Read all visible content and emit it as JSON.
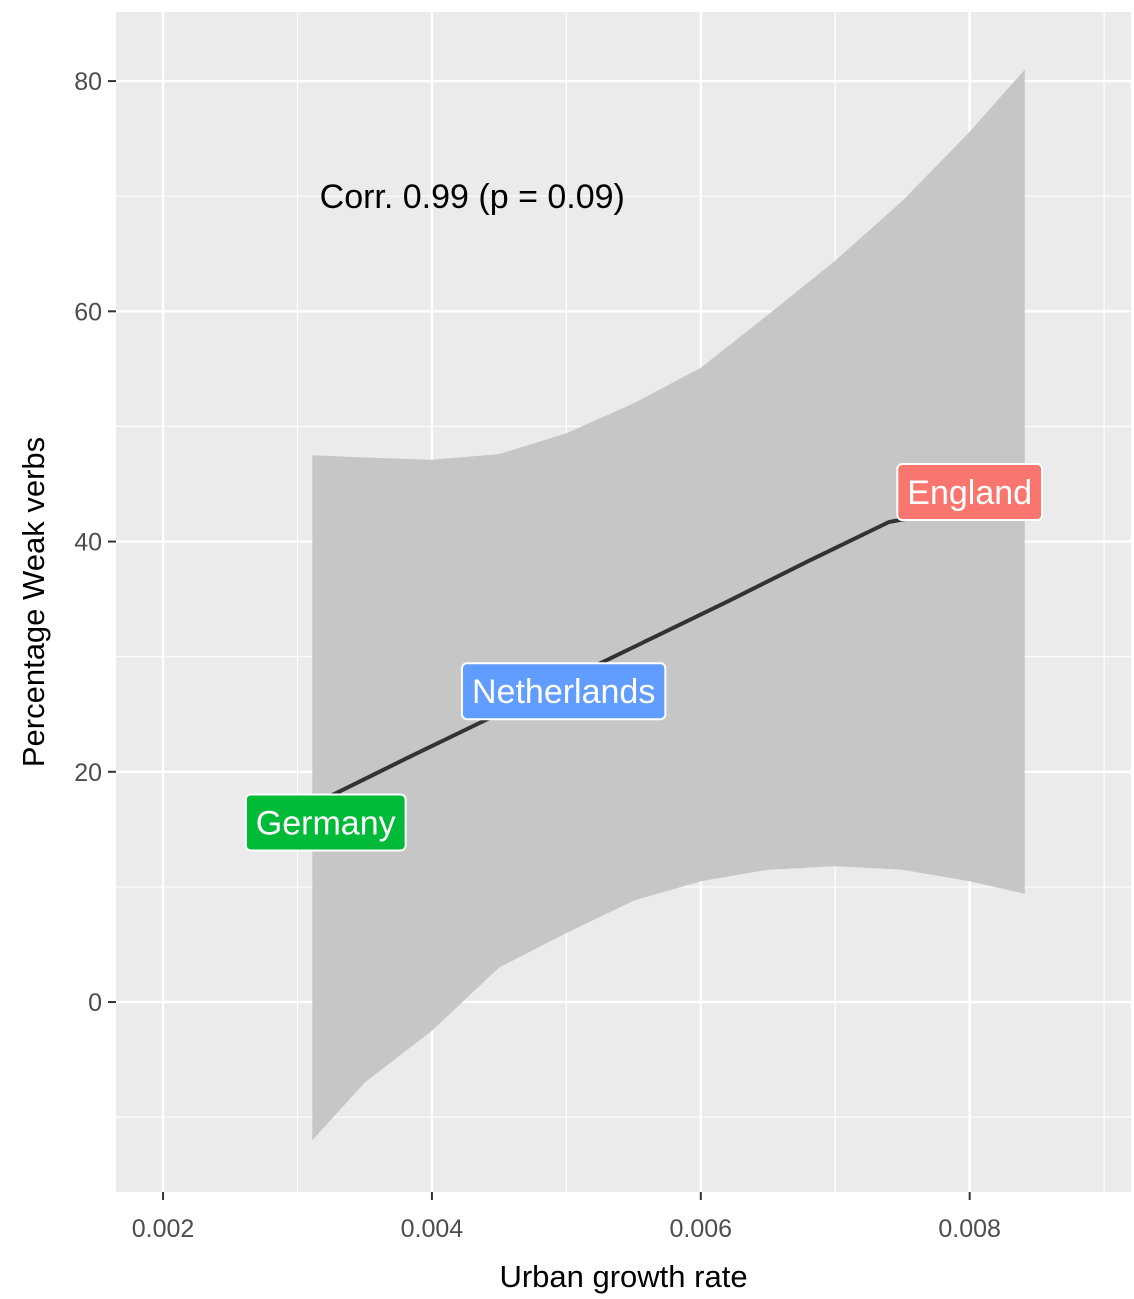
{
  "chart_data": {
    "type": "scatter",
    "title": "",
    "xlabel": "Urban growth rate",
    "ylabel": "Percentage Weak verbs",
    "xlim": [
      0.00165,
      0.0092
    ],
    "ylim": [
      -16.5,
      86
    ],
    "x_ticks": [
      0.002,
      0.004,
      0.006,
      0.008
    ],
    "x_tick_labels": [
      "0.002",
      "0.004",
      "0.006",
      "0.008"
    ],
    "y_ticks": [
      0,
      20,
      40,
      60,
      80
    ],
    "y_tick_labels": [
      "0",
      "20",
      "40",
      "60",
      "80"
    ],
    "grid": true,
    "panel_background": "#ebebeb",
    "annotation": "Corr. 0.99 (p = 0.09)",
    "points": [
      {
        "label": "Germany",
        "x": 0.00321,
        "y": 15.6,
        "color": "#00ba38"
      },
      {
        "label": "Netherlands",
        "x": 0.00498,
        "y": 27.0,
        "color": "#619cff"
      },
      {
        "label": "England",
        "x": 0.008,
        "y": 44.3,
        "color": "#f8766d"
      }
    ],
    "fit_line": {
      "x": [
        0.00321,
        0.0038,
        0.0044,
        0.005,
        0.0056,
        0.0062,
        0.0068,
        0.0074,
        0.008
      ],
      "y": [
        17.7,
        21.1,
        24.5,
        28.0,
        31.4,
        34.8,
        38.3,
        41.7,
        43.0
      ],
      "color": "#333333"
    },
    "confidence_band": {
      "x": [
        0.00311,
        0.0035,
        0.004,
        0.0045,
        0.005,
        0.0055,
        0.006,
        0.0065,
        0.007,
        0.0075,
        0.008,
        0.00841
      ],
      "upper": [
        47.5,
        47.3,
        47.1,
        47.6,
        49.4,
        52.0,
        55.1,
        59.7,
        64.4,
        69.6,
        75.6,
        81.0
      ],
      "lower": [
        -12.0,
        -7.0,
        -2.5,
        3.0,
        6.0,
        8.8,
        10.5,
        11.5,
        11.8,
        11.5,
        10.5,
        9.4
      ],
      "color": "#c6c6c6"
    }
  }
}
